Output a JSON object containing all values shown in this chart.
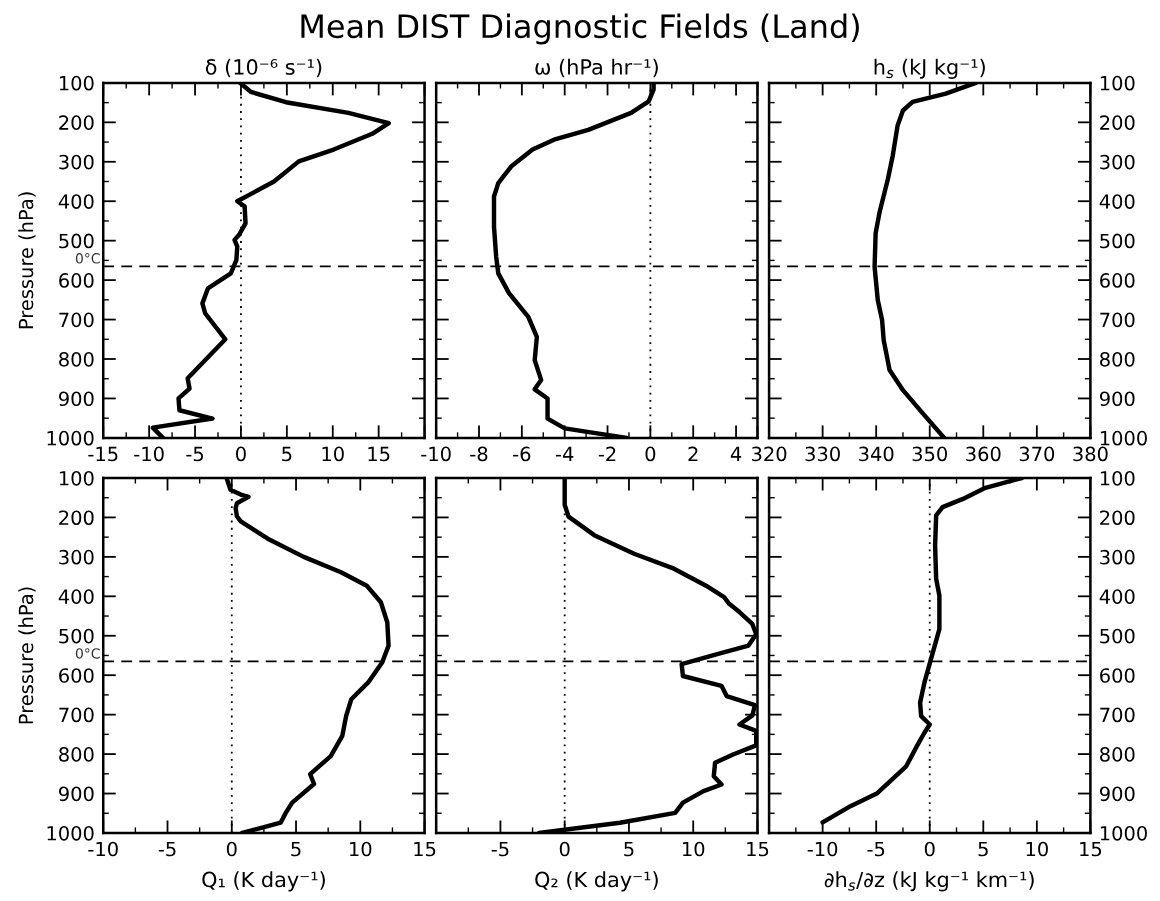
{
  "chart_data": [
    {
      "type": "line",
      "title": "δ (10⁻⁶ s⁻¹)",
      "ylabel": "Pressure (hPa)",
      "annotations": [
        "Mean DIST Diagnostic Fields (Land)"
      ],
      "xlim": [
        -15,
        20
      ],
      "xticks": [
        -15,
        -10,
        -5,
        0,
        5,
        10,
        15,
        {
          "value": 20,
          "label": null
        }
      ],
      "ylim": [
        1000,
        100
      ],
      "yticks": [
        100,
        200,
        300,
        400,
        500,
        600,
        700,
        800,
        900,
        1000
      ],
      "grid": false,
      "legend": false,
      "marker": "none",
      "line_style": "solid",
      "ref_lines": [
        {
          "axis": "y",
          "value": 565,
          "label": "0°C",
          "color": "#000000",
          "line_style": "dashed"
        },
        {
          "axis": "x",
          "value": 0,
          "label": null,
          "color": "#000000",
          "line_style": "dotted"
        }
      ],
      "series": [
        {
          "color": "#000000",
          "x": [
            -0.1,
            1.1,
            4.9,
            11.7,
            16.1,
            14.3,
            10.1,
            6.3,
            3.6,
            0.9,
            -0.4,
            0.4,
            0.5,
            -0.2,
            -0.7,
            -0.4,
            -0.5,
            -1.1,
            -3.6,
            -4.2,
            -3.9,
            -1.7,
            -5.8,
            -5.6,
            -6.8,
            -6.7,
            -3.1,
            -9.6,
            -8.5
          ],
          "values": [
            100,
            123,
            149,
            176,
            202,
            229,
            269,
            299,
            350,
            384,
            400,
            413,
            456,
            485,
            498,
            515,
            549,
            583,
            621,
            659,
            684,
            750,
            849,
            875,
            900,
            930,
            951,
            974,
            1000
          ]
        }
      ]
    },
    {
      "type": "line",
      "title": "ω (hPa hr⁻¹)",
      "xlim": [
        -10,
        5
      ],
      "xticks": [
        -10,
        -8,
        -6,
        -4,
        -2,
        0,
        2,
        4,
        {
          "value": 5,
          "label": null
        }
      ],
      "ylim": [
        1000,
        100
      ],
      "yticks": [
        100,
        200,
        300,
        400,
        500,
        600,
        700,
        800,
        900,
        1000
      ],
      "tick_labels": "x",
      "grid": false,
      "legend": false,
      "marker": "none",
      "line_style": "solid",
      "ref_lines": [
        {
          "axis": "y",
          "value": 565,
          "label": null,
          "color": "#000000",
          "line_style": "dashed"
        },
        {
          "axis": "x",
          "value": 0,
          "label": null,
          "color": "#000000",
          "line_style": "dotted"
        }
      ],
      "series": [
        {
          "color": "#000000",
          "x": [
            0.15,
            0.15,
            -0.08,
            -0.9,
            -2.9,
            -4.5,
            -5.5,
            -6.5,
            -7.1,
            -7.3,
            -7.3,
            -7.2,
            -7.1,
            -6.6,
            -5.7,
            -5.3,
            -5.4,
            -5.1,
            -5.4,
            -4.8,
            -4.8,
            -4.0,
            -1.1
          ],
          "values": [
            100,
            117,
            147,
            176,
            219,
            244,
            269,
            312,
            354,
            388,
            464,
            540,
            583,
            633,
            693,
            744,
            803,
            853,
            877,
            900,
            951,
            976,
            1000
          ]
        }
      ]
    },
    {
      "type": "line",
      "title": "h$_{s}$ (kJ kg⁻¹)",
      "xlim": [
        320,
        380
      ],
      "xticks": [
        320,
        330,
        340,
        350,
        360,
        370,
        380
      ],
      "ylim": [
        1000,
        100
      ],
      "yticks": [
        100,
        200,
        300,
        400,
        500,
        600,
        700,
        800,
        900,
        1000
      ],
      "grid": false,
      "legend": false,
      "marker": "none",
      "line_style": "solid",
      "ref_lines": [
        {
          "axis": "y",
          "value": 565,
          "label": null,
          "color": "#000000",
          "line_style": "dashed"
        }
      ],
      "series": [
        {
          "color": "#000000",
          "x": [
            358.6,
            353.0,
            346.8,
            345.0,
            344.0,
            343.1,
            342.2,
            340.6,
            339.9,
            339.7,
            340.3,
            341.1,
            341.4,
            342.5,
            345.0,
            348.7,
            352.7
          ],
          "values": [
            100,
            127,
            148,
            170,
            208,
            284,
            343,
            430,
            481,
            566,
            651,
            701,
            752,
            828,
            879,
            938,
            1000
          ]
        }
      ]
    },
    {
      "type": "line",
      "xlabel": "Q₁ (K day⁻¹)",
      "ylabel": "Pressure (hPa)",
      "xlim": [
        -10,
        15
      ],
      "xticks": [
        -10,
        -5,
        0,
        5,
        10,
        15
      ],
      "ylim": [
        1000,
        100
      ],
      "yticks": [
        100,
        200,
        300,
        400,
        500,
        600,
        700,
        800,
        900,
        1000
      ],
      "grid": false,
      "legend": false,
      "marker": "none",
      "line_style": "solid",
      "ref_lines": [
        {
          "axis": "y",
          "value": 565,
          "label": "0°C",
          "color": "#000000",
          "line_style": "dashed"
        },
        {
          "axis": "x",
          "value": 0,
          "label": null,
          "color": "#000000",
          "line_style": "dotted"
        }
      ],
      "series": [
        {
          "color": "#000000",
          "x": [
            -0.4,
            -0.1,
            0.7,
            1.3,
            0.4,
            0.3,
            0.4,
            0.7,
            2.8,
            5.6,
            8.5,
            10.5,
            11.6,
            12.1,
            12.2,
            11.7,
            10.6,
            9.3,
            8.9,
            8.6,
            7.7,
            6.1,
            6.4,
            4.7,
            4.2,
            3.8,
            2.3,
            0.8
          ],
          "values": [
            100,
            130,
            142,
            148,
            164,
            176,
            197,
            210,
            254,
            300,
            339,
            373,
            415,
            466,
            525,
            568,
            619,
            661,
            703,
            754,
            805,
            851,
            876,
            923,
            949,
            974,
            987,
            1000
          ]
        }
      ]
    },
    {
      "type": "line",
      "xlabel": "Q₂ (K day⁻¹)",
      "xlim": [
        -10,
        15
      ],
      "xticks": [
        {
          "value": -10,
          "label": null
        },
        -5,
        0,
        5,
        10,
        15
      ],
      "ylim": [
        1000,
        100
      ],
      "yticks": [
        100,
        200,
        300,
        400,
        500,
        600,
        700,
        800,
        900,
        1000
      ],
      "tick_labels": "x",
      "grid": false,
      "legend": false,
      "marker": "none",
      "line_style": "solid",
      "ref_lines": [
        {
          "axis": "y",
          "value": 565,
          "label": null,
          "color": "#000000",
          "line_style": "dashed"
        },
        {
          "axis": "x",
          "value": 0,
          "label": null,
          "color": "#000000",
          "line_style": "dotted"
        }
      ],
      "series": [
        {
          "color": "#000000",
          "x": [
            0,
            0,
            0.3,
            2.3,
            5.4,
            8.5,
            11.0,
            12.4,
            12.8,
            13.6,
            14.6,
            14.9,
            14.3,
            11.8,
            9.1,
            9.2,
            12.2,
            12.6,
            14.8,
            14.6,
            13.6,
            14.9,
            14.9,
            13.1,
            11.7,
            11.6,
            12.2,
            10.8,
            9.2,
            8.6,
            4.3,
            -2.0
          ],
          "values": [
            100,
            168,
            198,
            245,
            292,
            330,
            373,
            402,
            419,
            440,
            470,
            496,
            525,
            547,
            572,
            602,
            627,
            653,
            676,
            702,
            725,
            741,
            778,
            801,
            822,
            856,
            877,
            894,
            923,
            949,
            974,
            1000
          ]
        }
      ]
    },
    {
      "type": "line",
      "xlabel": "∂h$_{s}$/∂z (kJ kg⁻¹ km⁻¹)",
      "xlim": [
        -15,
        15
      ],
      "xticks": [
        {
          "value": -15,
          "label": null
        },
        -10,
        -5,
        0,
        5,
        10,
        15
      ],
      "ylim": [
        1000,
        100
      ],
      "yticks": [
        100,
        200,
        300,
        400,
        500,
        600,
        700,
        800,
        900,
        1000
      ],
      "grid": false,
      "legend": false,
      "marker": "none",
      "line_style": "solid",
      "ref_lines": [
        {
          "axis": "y",
          "value": 565,
          "label": null,
          "color": "#000000",
          "line_style": "dashed"
        },
        {
          "axis": "x",
          "value": 0,
          "label": null,
          "color": "#000000",
          "line_style": "dotted"
        }
      ],
      "series": [
        {
          "color": "#000000",
          "x": [
            8.6,
            5.2,
            3.1,
            1.2,
            0.6,
            0.5,
            0.6,
            0.9,
            0.9,
            0.2,
            -0.5,
            -0.9,
            -0.8,
            0.0,
            -0.5,
            -1.2,
            -2.2,
            -4.9,
            -7.4,
            -10.0
          ],
          "values": [
            100,
            125,
            153,
            174,
            195,
            271,
            356,
            398,
            483,
            551,
            619,
            670,
            704,
            725,
            746,
            780,
            831,
            899,
            932,
            973
          ]
        }
      ]
    }
  ]
}
